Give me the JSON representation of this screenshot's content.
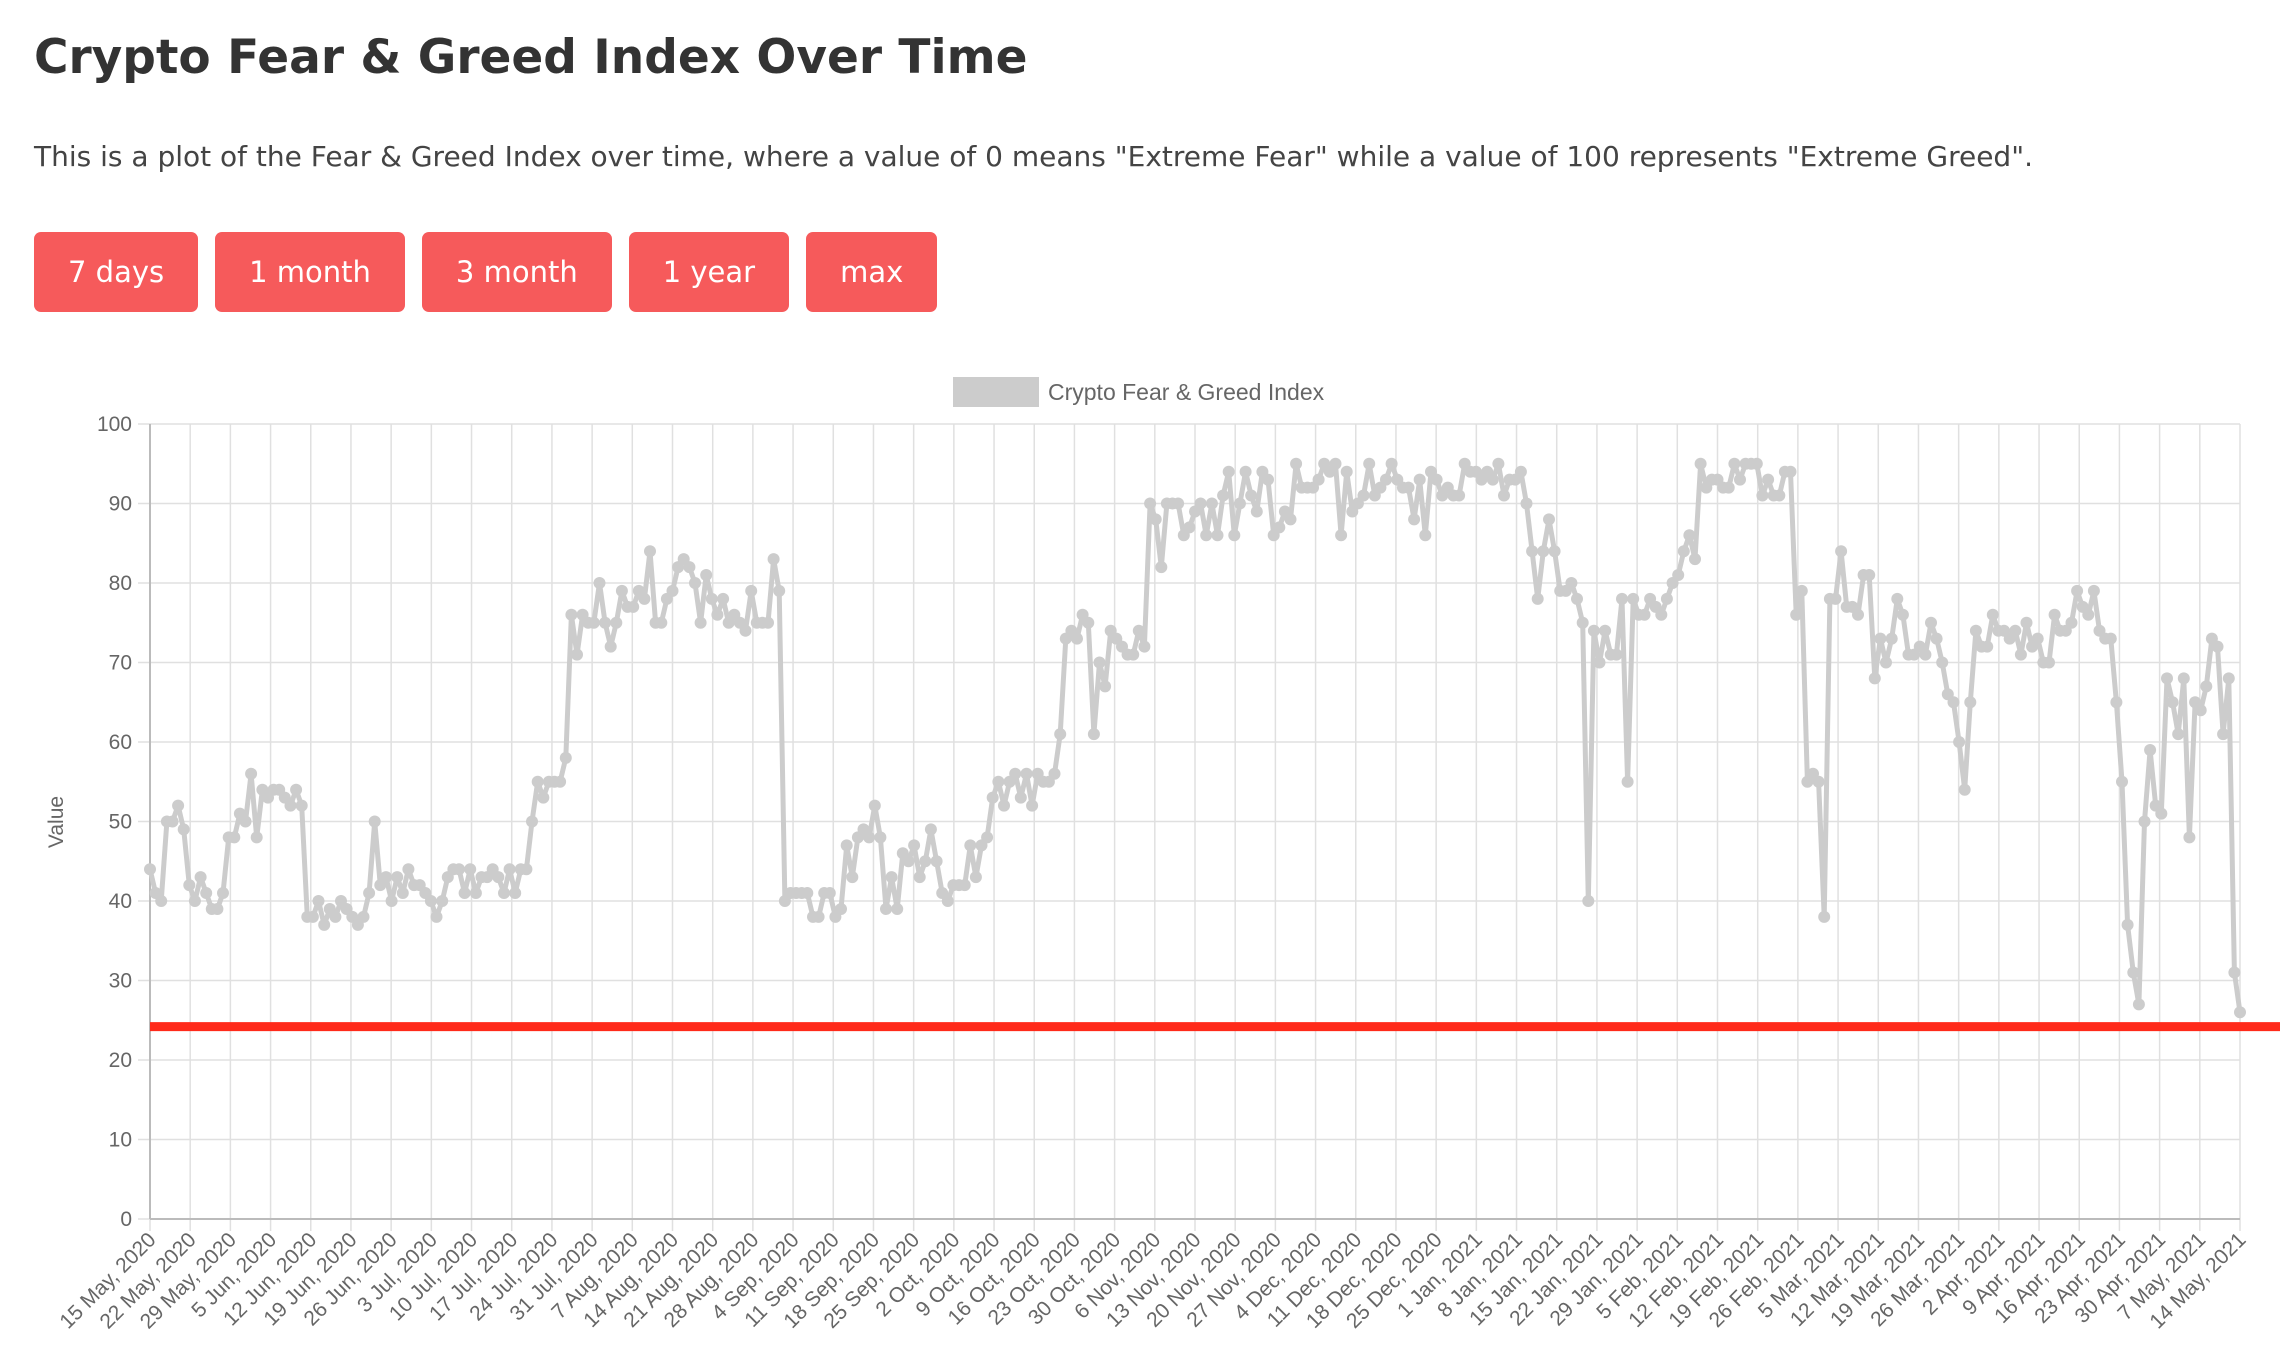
{
  "header": {
    "title": "Crypto Fear & Greed Index Over Time",
    "description": "This is a plot of the Fear & Greed Index over time, where a value of 0 means \"Extreme Fear\" while a value of 100 represents \"Extreme Greed\"."
  },
  "range_buttons": [
    "7 days",
    "1 month",
    "3 month",
    "1 year",
    "max"
  ],
  "colors": {
    "button_bg": "#f65a5b",
    "line": "#cccccc",
    "threshold_line": "#ff2a1a",
    "grid": "#e0e0e0"
  },
  "chart_data": {
    "type": "line",
    "title": "",
    "xlabel": "",
    "ylabel": "Value",
    "ylim": [
      0,
      100
    ],
    "y_ticks": [
      0,
      10,
      20,
      30,
      40,
      50,
      60,
      70,
      80,
      90,
      100
    ],
    "grid": true,
    "legend_position": "top-center",
    "x_tick_labels": [
      "15 May, 2020",
      "22 May, 2020",
      "29 May, 2020",
      "5 Jun, 2020",
      "12 Jun, 2020",
      "19 Jun, 2020",
      "26 Jun, 2020",
      "3 Jul, 2020",
      "10 Jul, 2020",
      "17 Jul, 2020",
      "24 Jul, 2020",
      "31 Jul, 2020",
      "7 Aug, 2020",
      "14 Aug, 2020",
      "21 Aug, 2020",
      "28 Aug, 2020",
      "4 Sep, 2020",
      "11 Sep, 2020",
      "18 Sep, 2020",
      "25 Sep, 2020",
      "2 Oct, 2020",
      "9 Oct, 2020",
      "16 Oct, 2020",
      "23 Oct, 2020",
      "30 Oct, 2020",
      "6 Nov, 2020",
      "13 Nov, 2020",
      "20 Nov, 2020",
      "27 Nov, 2020",
      "4 Dec, 2020",
      "11 Dec, 2020",
      "18 Dec, 2020",
      "25 Dec, 2020",
      "1 Jan, 2021",
      "8 Jan, 2021",
      "15 Jan, 2021",
      "22 Jan, 2021",
      "29 Jan, 2021",
      "5 Feb, 2021",
      "12 Feb, 2021",
      "19 Feb, 2021",
      "26 Feb, 2021",
      "5 Mar, 2021",
      "12 Mar, 2021",
      "19 Mar, 2021",
      "26 Mar, 2021",
      "2 Apr, 2021",
      "9 Apr, 2021",
      "16 Apr, 2021",
      "23 Apr, 2021",
      "30 Apr, 2021",
      "7 May, 2021",
      "14 May, 2021"
    ],
    "threshold_line_value": 24.2,
    "series": [
      {
        "name": "Crypto Fear & Greed Index",
        "values": [
          44,
          41,
          40,
          50,
          50,
          52,
          49,
          42,
          40,
          43,
          41,
          39,
          39,
          41,
          48,
          48,
          51,
          50,
          56,
          48,
          54,
          53,
          54,
          54,
          53,
          52,
          54,
          52,
          38,
          38,
          40,
          37,
          39,
          38,
          40,
          39,
          38,
          37,
          38,
          41,
          50,
          42,
          43,
          40,
          43,
          41,
          44,
          42,
          42,
          41,
          40,
          38,
          40,
          43,
          44,
          44,
          41,
          44,
          41,
          43,
          43,
          44,
          43,
          41,
          44,
          41,
          44,
          44,
          50,
          55,
          53,
          55,
          55,
          55,
          58,
          76,
          71,
          76,
          75,
          75,
          80,
          75,
          72,
          75,
          79,
          77,
          77,
          79,
          78,
          84,
          75,
          75,
          78,
          79,
          82,
          83,
          82,
          80,
          75,
          81,
          78,
          76,
          78,
          75,
          76,
          75,
          74,
          79,
          75,
          75,
          75,
          83,
          79,
          40,
          41,
          41,
          41,
          41,
          38,
          38,
          41,
          41,
          38,
          39,
          47,
          43,
          48,
          49,
          48,
          52,
          48,
          39,
          43,
          39,
          46,
          45,
          47,
          43,
          45,
          49,
          45,
          41,
          40,
          42,
          42,
          42,
          47,
          43,
          47,
          48,
          53,
          55,
          52,
          55,
          56,
          53,
          56,
          52,
          56,
          55,
          55,
          56,
          61,
          73,
          74,
          73,
          76,
          75,
          61,
          70,
          67,
          74,
          73,
          72,
          71,
          71,
          74,
          72,
          90,
          88,
          82,
          90,
          90,
          90,
          86,
          87,
          89,
          90,
          86,
          90,
          86,
          91,
          94,
          86,
          90,
          94,
          91,
          89,
          94,
          93,
          86,
          87,
          89,
          88,
          95,
          92,
          92,
          92,
          93,
          95,
          94,
          95,
          86,
          94,
          89,
          90,
          91,
          95,
          91,
          92,
          93,
          95,
          93,
          92,
          92,
          88,
          93,
          86,
          94,
          93,
          91,
          92,
          91,
          91,
          95,
          94,
          94,
          93,
          94,
          93,
          95,
          91,
          93,
          93,
          94,
          90,
          84,
          78,
          84,
          88,
          84,
          79,
          79,
          80,
          78,
          75,
          40,
          74,
          70,
          74,
          71,
          71,
          78,
          55,
          78,
          76,
          76,
          78,
          77,
          76,
          78,
          80,
          81,
          84,
          86,
          83,
          95,
          92,
          93,
          93,
          92,
          92,
          95,
          93,
          95,
          95,
          95,
          91,
          93,
          91,
          91,
          94,
          94,
          76,
          79,
          55,
          56,
          55,
          38,
          78,
          78,
          84,
          77,
          77,
          76,
          81,
          81,
          68,
          73,
          70,
          73,
          78,
          76,
          71,
          71,
          72,
          71,
          75,
          73,
          70,
          66,
          65,
          60,
          54,
          65,
          74,
          72,
          72,
          76,
          74,
          74,
          73,
          74,
          71,
          75,
          72,
          73,
          70,
          70,
          76,
          74,
          74,
          75,
          79,
          77,
          76,
          79,
          74,
          73,
          73,
          65,
          55,
          37,
          31,
          27,
          50,
          59,
          52,
          51,
          68,
          65,
          61,
          68,
          48,
          65,
          64,
          67,
          73,
          72,
          61,
          68,
          31,
          26
        ]
      }
    ]
  }
}
